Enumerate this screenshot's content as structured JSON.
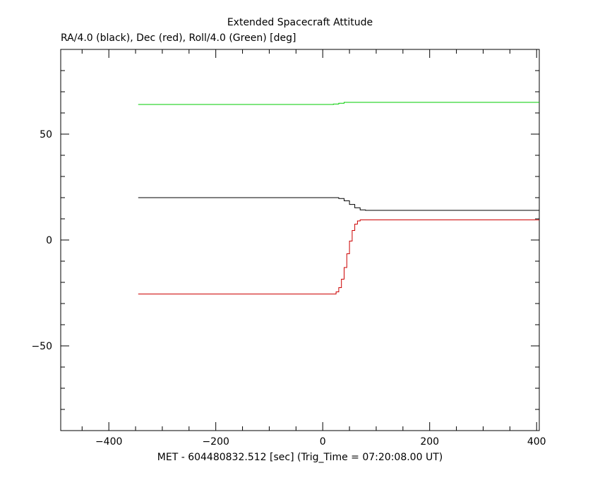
{
  "chart_data": {
    "type": "line",
    "title": "Extended Spacecraft Attitude",
    "subtitle": "RA/4.0 (black), Dec (red), Roll/4.0 (Green) [deg]",
    "xlabel": "MET - 604480832.512 [sec] (Trig_Time = 07:20:08.00 UT)",
    "ylabel": "",
    "xlim": [
      -490,
      405
    ],
    "ylim": [
      -90,
      90
    ],
    "x_ticks": [
      -400,
      -200,
      0,
      200,
      400
    ],
    "y_ticks": [
      -50,
      0,
      50
    ],
    "x_tick_labels": [
      "−400",
      "−200",
      "0",
      "200",
      "400"
    ],
    "y_tick_labels": [
      "−50",
      "0",
      "50"
    ],
    "grid": false,
    "series": [
      {
        "color": "#00cc00",
        "points": [
          [
            -345,
            64.0
          ],
          [
            0,
            64.0
          ],
          [
            20,
            64.2
          ],
          [
            30,
            64.6
          ],
          [
            40,
            65.0
          ],
          [
            405,
            65.0
          ]
        ]
      },
      {
        "color": "#000000",
        "points": [
          [
            -345,
            20.0
          ],
          [
            20,
            20.0
          ],
          [
            30,
            19.6
          ],
          [
            40,
            18.5
          ],
          [
            50,
            16.8
          ],
          [
            60,
            15.2
          ],
          [
            70,
            14.2
          ],
          [
            80,
            14.0
          ],
          [
            405,
            14.0
          ]
        ]
      },
      {
        "color": "#cc0000",
        "points": [
          [
            -345,
            -25.5
          ],
          [
            20,
            -25.5
          ],
          [
            25,
            -24.5
          ],
          [
            30,
            -22.5
          ],
          [
            35,
            -18.5
          ],
          [
            40,
            -13.0
          ],
          [
            45,
            -6.5
          ],
          [
            50,
            -0.5
          ],
          [
            55,
            4.5
          ],
          [
            60,
            7.5
          ],
          [
            65,
            9.0
          ],
          [
            70,
            9.5
          ],
          [
            405,
            9.5
          ]
        ]
      }
    ]
  }
}
